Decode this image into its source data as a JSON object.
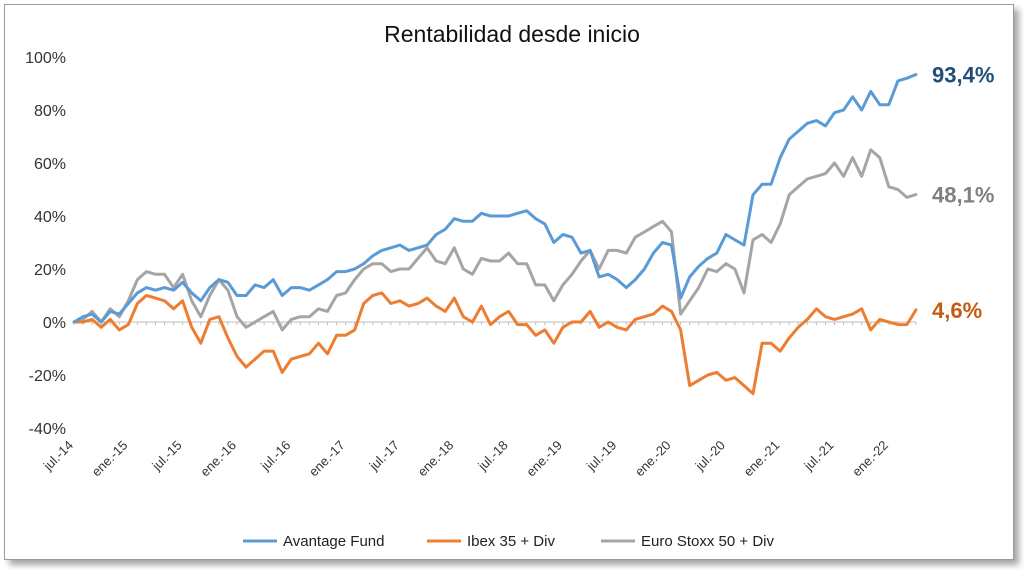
{
  "chart_data": {
    "type": "line",
    "title": "Rentabilidad desde inicio",
    "xlabel": "",
    "ylabel": "",
    "ylim": [
      -40,
      100
    ],
    "yticks": [
      -40,
      -20,
      0,
      20,
      40,
      60,
      80,
      100
    ],
    "ytick_labels": [
      "-40%",
      "-20%",
      "0%",
      "20%",
      "40%",
      "60%",
      "80%",
      "100%"
    ],
    "xtick_labels": [
      "jul.-14",
      "ene.-15",
      "jul.-15",
      "ene.-16",
      "jul.-16",
      "ene.-17",
      "jul.-17",
      "ene.-18",
      "jul.-18",
      "ene.-19",
      "jul.-19",
      "ene.-20",
      "jul.-20",
      "ene.-21",
      "jul.-21",
      "ene.-22"
    ],
    "xtick_index": [
      0,
      6,
      12,
      18,
      24,
      30,
      36,
      42,
      48,
      54,
      60,
      66,
      72,
      78,
      84,
      90
    ],
    "legend_position": "bottom",
    "grid": false,
    "series": [
      {
        "name": "Avantage Fund",
        "color": "#5B9BD5",
        "end_label": "93,4%",
        "end_label_color": "#1F4E79",
        "values": [
          0,
          2,
          3,
          0,
          4,
          3,
          7,
          11,
          13,
          12,
          13,
          12,
          15,
          11,
          8,
          13,
          16,
          15,
          10,
          10,
          14,
          13,
          16,
          10,
          13,
          13,
          12,
          14,
          16,
          19,
          19,
          20,
          22,
          25,
          27,
          28,
          29,
          27,
          28,
          29,
          33,
          35,
          39,
          38,
          38,
          41,
          40,
          40,
          40,
          41,
          42,
          39,
          37,
          30,
          33,
          32,
          26,
          27,
          17,
          18,
          16,
          13,
          16,
          20,
          26,
          30,
          29,
          9,
          17,
          21,
          24,
          26,
          33,
          31,
          29,
          48,
          52,
          52,
          62,
          69,
          72,
          75,
          76,
          74,
          79,
          80,
          85,
          80,
          87,
          82,
          82,
          91,
          92,
          93.4
        ]
      },
      {
        "name": "Ibex 35 + Div",
        "color": "#ED7D31",
        "end_label": "4,6%",
        "end_label_color": "#C55A11",
        "values": [
          0,
          0,
          1,
          -2,
          1,
          -3,
          -1,
          7,
          10,
          9,
          8,
          5,
          8,
          -2,
          -8,
          1,
          2,
          -6,
          -13,
          -17,
          -14,
          -11,
          -11,
          -19,
          -14,
          -13,
          -12,
          -8,
          -12,
          -5,
          -5,
          -3,
          7,
          10,
          11,
          7,
          8,
          6,
          7,
          9,
          6,
          4,
          9,
          2,
          0,
          6,
          -1,
          2,
          4,
          -1,
          -1,
          -5,
          -3,
          -8,
          -2,
          0,
          0,
          4,
          -2,
          0,
          -2,
          -3,
          1,
          2,
          3,
          6,
          4,
          -3,
          -24,
          -22,
          -20,
          -19,
          -22,
          -21,
          -24,
          -27,
          -8,
          -8,
          -11,
          -6,
          -2,
          1,
          5,
          2,
          1,
          2,
          3,
          5,
          -3,
          1,
          0,
          -1,
          -1,
          4.6
        ]
      },
      {
        "name": "Euro Stoxx 50 + Div",
        "color": "#A5A5A5",
        "end_label": "48,1%",
        "end_label_color": "#808080",
        "values": [
          0,
          1,
          4,
          0,
          5,
          2,
          8,
          16,
          19,
          18,
          18,
          13,
          18,
          8,
          2,
          10,
          16,
          12,
          2,
          -2,
          0,
          2,
          4,
          -3,
          1,
          2,
          2,
          5,
          4,
          10,
          11,
          16,
          20,
          22,
          22,
          19,
          20,
          20,
          24,
          28,
          23,
          22,
          28,
          20,
          18,
          24,
          23,
          23,
          26,
          22,
          22,
          14,
          14,
          8,
          14,
          18,
          23,
          27,
          20,
          27,
          27,
          26,
          32,
          34,
          36,
          38,
          34,
          3,
          8,
          13,
          20,
          19,
          22,
          20,
          11,
          31,
          33,
          30,
          37,
          48,
          51,
          54,
          55,
          56,
          60,
          55,
          62,
          55,
          65,
          62,
          51,
          50,
          47,
          48.1
        ]
      }
    ]
  }
}
